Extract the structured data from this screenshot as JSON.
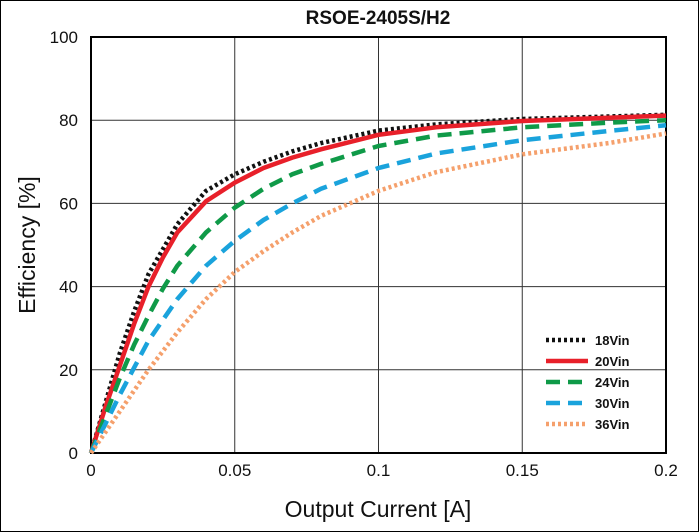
{
  "chart_data": {
    "type": "line",
    "title": "RSOE-2405S/H2",
    "xlabel": "Output Current [A]",
    "ylabel": "Efficiency [%]",
    "xlim": [
      0,
      0.2
    ],
    "ylim": [
      0,
      100
    ],
    "xticks": [
      "0",
      "0.05",
      "0.1",
      "0.15",
      "0.2"
    ],
    "yticks": [
      "0",
      "20",
      "40",
      "60",
      "80",
      "100"
    ],
    "grid": true,
    "legend_position": "bottom-right",
    "x": [
      0,
      0.005,
      0.01,
      0.015,
      0.02,
      0.025,
      0.03,
      0.04,
      0.05,
      0.06,
      0.07,
      0.08,
      0.1,
      0.12,
      0.15,
      0.18,
      0.2
    ],
    "series": [
      {
        "name": "18Vin",
        "color": "#111111",
        "dash": "dotted",
        "values": [
          0,
          12,
          24,
          34,
          43,
          49,
          55,
          63,
          67,
          70,
          72.5,
          74.5,
          77.5,
          79,
          80.3,
          80.9,
          81.3
        ]
      },
      {
        "name": "20Vin",
        "color": "#e8202a",
        "dash": "solid",
        "values": [
          0,
          11,
          21,
          31,
          40,
          47,
          53,
          60.5,
          65,
          68.5,
          71,
          73,
          76.5,
          78.3,
          79.8,
          80.6,
          81.1
        ]
      },
      {
        "name": "24Vin",
        "color": "#0f9a48",
        "dash": "dashed",
        "values": [
          0,
          9,
          18,
          26,
          33,
          39.5,
          45,
          53,
          59,
          63.5,
          67,
          69.5,
          73.8,
          76.3,
          78.3,
          79.4,
          80
        ]
      },
      {
        "name": "30Vin",
        "color": "#1aa3dc",
        "dash": "dashed",
        "values": [
          0,
          7,
          14,
          20.5,
          27,
          32,
          37,
          45,
          51,
          56,
          60,
          63.5,
          68.5,
          72,
          75.2,
          77.4,
          78.8
        ]
      },
      {
        "name": "36Vin",
        "color": "#f5a06c",
        "dash": "dotted",
        "values": [
          0,
          5,
          10,
          15,
          20,
          24.5,
          29,
          37,
          43.5,
          48.5,
          53,
          57,
          63,
          67.5,
          71.8,
          74.5,
          76.8
        ]
      }
    ]
  }
}
